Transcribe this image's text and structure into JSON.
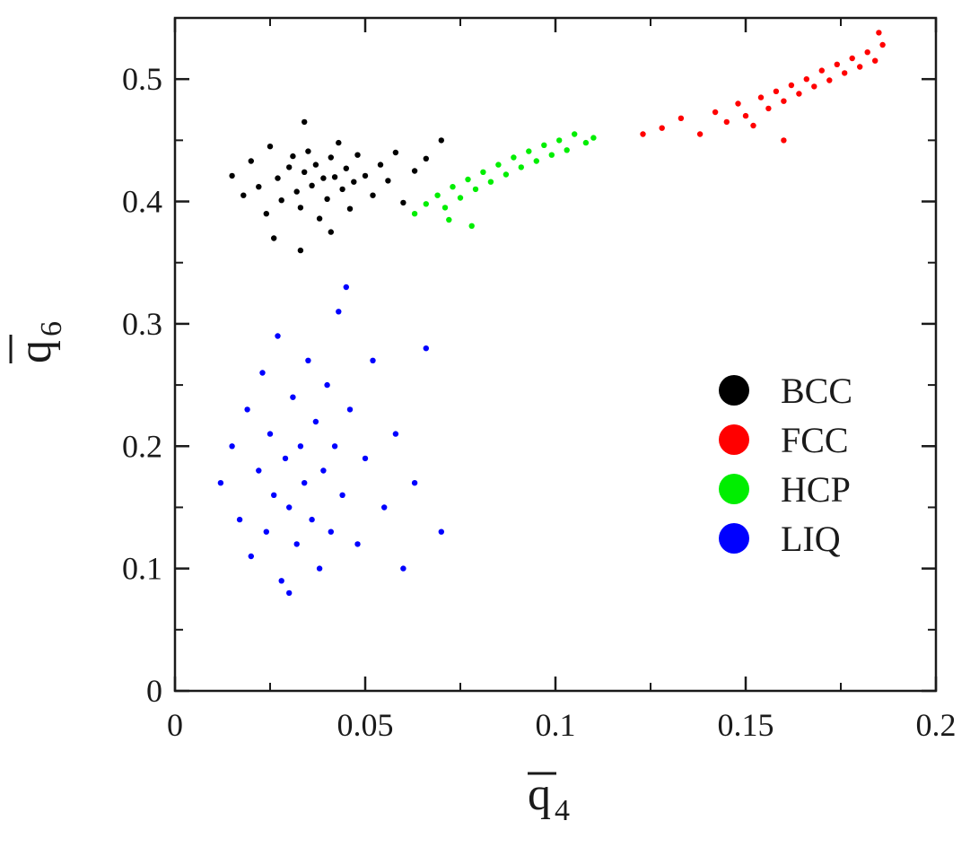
{
  "chart_data": {
    "type": "scatter",
    "title": "",
    "xlabel": "q",
    "xlabel_sub": "4",
    "ylabel": "q",
    "ylabel_sub": "6",
    "xlim": [
      0,
      0.2
    ],
    "ylim": [
      0,
      0.55
    ],
    "xticks": [
      0,
      0.05,
      0.1,
      0.15,
      0.2
    ],
    "xtick_labels": [
      "0",
      "0.05",
      "0.1",
      "0.15",
      "0.2"
    ],
    "yticks": [
      0,
      0.1,
      0.2,
      0.3,
      0.4,
      0.5
    ],
    "ytick_labels": [
      "0",
      "0.1",
      "0.2",
      "0.3",
      "0.4",
      "0.5"
    ],
    "grid": false,
    "legend_position": "right-middle",
    "series": [
      {
        "name": "BCC",
        "color": "#000000",
        "points": [
          [
            0.015,
            0.421
          ],
          [
            0.018,
            0.405
          ],
          [
            0.02,
            0.433
          ],
          [
            0.022,
            0.412
          ],
          [
            0.024,
            0.39
          ],
          [
            0.025,
            0.445
          ],
          [
            0.027,
            0.419
          ],
          [
            0.028,
            0.401
          ],
          [
            0.03,
            0.428
          ],
          [
            0.031,
            0.437
          ],
          [
            0.032,
            0.408
          ],
          [
            0.033,
            0.395
          ],
          [
            0.034,
            0.424
          ],
          [
            0.035,
            0.441
          ],
          [
            0.036,
            0.413
          ],
          [
            0.037,
            0.43
          ],
          [
            0.038,
            0.386
          ],
          [
            0.039,
            0.419
          ],
          [
            0.04,
            0.402
          ],
          [
            0.041,
            0.436
          ],
          [
            0.042,
            0.42
          ],
          [
            0.043,
            0.448
          ],
          [
            0.044,
            0.41
          ],
          [
            0.045,
            0.427
          ],
          [
            0.046,
            0.394
          ],
          [
            0.047,
            0.416
          ],
          [
            0.048,
            0.438
          ],
          [
            0.05,
            0.421
          ],
          [
            0.052,
            0.405
          ],
          [
            0.054,
            0.43
          ],
          [
            0.056,
            0.417
          ],
          [
            0.058,
            0.44
          ],
          [
            0.06,
            0.399
          ],
          [
            0.063,
            0.425
          ],
          [
            0.066,
            0.435
          ],
          [
            0.07,
            0.45
          ],
          [
            0.026,
            0.37
          ],
          [
            0.033,
            0.36
          ],
          [
            0.041,
            0.375
          ],
          [
            0.034,
            0.465
          ]
        ]
      },
      {
        "name": "FCC",
        "color": "#ff0000",
        "points": [
          [
            0.128,
            0.46
          ],
          [
            0.133,
            0.468
          ],
          [
            0.138,
            0.455
          ],
          [
            0.142,
            0.473
          ],
          [
            0.145,
            0.465
          ],
          [
            0.148,
            0.48
          ],
          [
            0.15,
            0.47
          ],
          [
            0.152,
            0.462
          ],
          [
            0.154,
            0.485
          ],
          [
            0.156,
            0.476
          ],
          [
            0.158,
            0.49
          ],
          [
            0.16,
            0.482
          ],
          [
            0.162,
            0.495
          ],
          [
            0.164,
            0.488
          ],
          [
            0.166,
            0.5
          ],
          [
            0.168,
            0.494
          ],
          [
            0.17,
            0.507
          ],
          [
            0.172,
            0.499
          ],
          [
            0.174,
            0.512
          ],
          [
            0.176,
            0.505
          ],
          [
            0.178,
            0.517
          ],
          [
            0.18,
            0.51
          ],
          [
            0.182,
            0.522
          ],
          [
            0.184,
            0.515
          ],
          [
            0.186,
            0.528
          ],
          [
            0.185,
            0.538
          ],
          [
            0.123,
            0.455
          ],
          [
            0.16,
            0.45
          ]
        ]
      },
      {
        "name": "HCP",
        "color": "#00ee00",
        "points": [
          [
            0.063,
            0.39
          ],
          [
            0.066,
            0.398
          ],
          [
            0.069,
            0.405
          ],
          [
            0.071,
            0.395
          ],
          [
            0.073,
            0.412
          ],
          [
            0.075,
            0.403
          ],
          [
            0.077,
            0.418
          ],
          [
            0.079,
            0.41
          ],
          [
            0.081,
            0.424
          ],
          [
            0.083,
            0.416
          ],
          [
            0.085,
            0.43
          ],
          [
            0.087,
            0.422
          ],
          [
            0.089,
            0.436
          ],
          [
            0.091,
            0.428
          ],
          [
            0.093,
            0.441
          ],
          [
            0.095,
            0.433
          ],
          [
            0.097,
            0.446
          ],
          [
            0.099,
            0.438
          ],
          [
            0.101,
            0.45
          ],
          [
            0.103,
            0.442
          ],
          [
            0.105,
            0.455
          ],
          [
            0.108,
            0.448
          ],
          [
            0.11,
            0.452
          ],
          [
            0.078,
            0.38
          ],
          [
            0.072,
            0.385
          ]
        ]
      },
      {
        "name": "LIQ",
        "color": "#0000ff",
        "points": [
          [
            0.012,
            0.17
          ],
          [
            0.015,
            0.2
          ],
          [
            0.017,
            0.14
          ],
          [
            0.019,
            0.23
          ],
          [
            0.02,
            0.11
          ],
          [
            0.022,
            0.18
          ],
          [
            0.023,
            0.26
          ],
          [
            0.024,
            0.13
          ],
          [
            0.025,
            0.21
          ],
          [
            0.026,
            0.16
          ],
          [
            0.027,
            0.29
          ],
          [
            0.028,
            0.09
          ],
          [
            0.029,
            0.19
          ],
          [
            0.03,
            0.15
          ],
          [
            0.031,
            0.24
          ],
          [
            0.032,
            0.12
          ],
          [
            0.033,
            0.2
          ],
          [
            0.034,
            0.17
          ],
          [
            0.035,
            0.27
          ],
          [
            0.036,
            0.14
          ],
          [
            0.037,
            0.22
          ],
          [
            0.038,
            0.1
          ],
          [
            0.039,
            0.18
          ],
          [
            0.04,
            0.25
          ],
          [
            0.041,
            0.13
          ],
          [
            0.042,
            0.2
          ],
          [
            0.043,
            0.31
          ],
          [
            0.044,
            0.16
          ],
          [
            0.046,
            0.23
          ],
          [
            0.048,
            0.12
          ],
          [
            0.05,
            0.19
          ],
          [
            0.052,
            0.27
          ],
          [
            0.055,
            0.15
          ],
          [
            0.058,
            0.21
          ],
          [
            0.06,
            0.1
          ],
          [
            0.063,
            0.17
          ],
          [
            0.066,
            0.28
          ],
          [
            0.07,
            0.13
          ],
          [
            0.03,
            0.08
          ],
          [
            0.045,
            0.33
          ]
        ]
      }
    ]
  }
}
